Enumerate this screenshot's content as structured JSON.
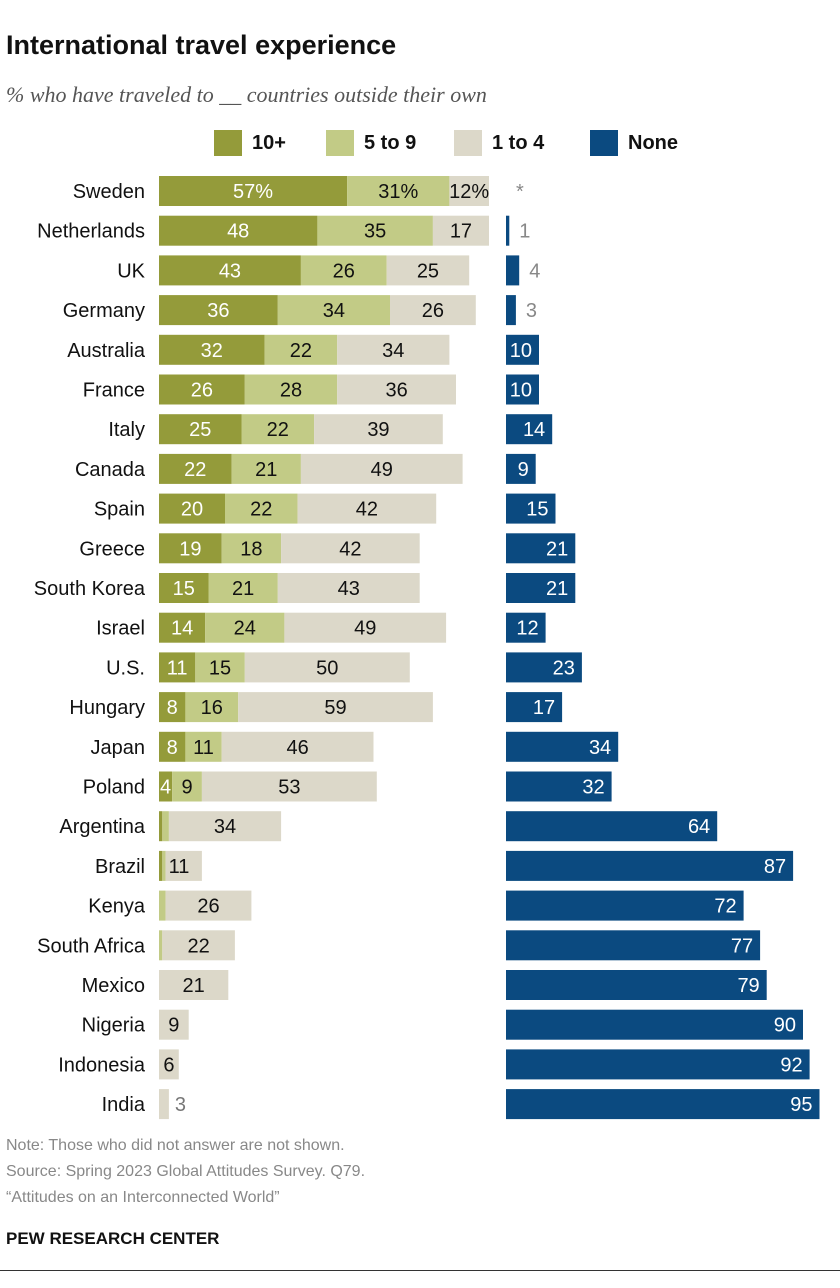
{
  "chart_data": {
    "type": "bar",
    "orientation": "horizontal-stacked",
    "title": "International travel experience",
    "subtitle": "% who have traveled to __ countries outside their own",
    "legend_position": "top",
    "colors": {
      "10+": "#949b3a",
      "5 to 9": "#c2cb86",
      "1 to 4": "#dcd8c9",
      "None": "#0b4a80"
    },
    "categories": [
      "Sweden",
      "Netherlands",
      "UK",
      "Germany",
      "Australia",
      "France",
      "Italy",
      "Canada",
      "Spain",
      "Greece",
      "South Korea",
      "Israel",
      "U.S.",
      "Hungary",
      "Japan",
      "Poland",
      "Argentina",
      "Brazil",
      "Kenya",
      "South Africa",
      "Mexico",
      "Nigeria",
      "Indonesia",
      "India"
    ],
    "series": [
      {
        "name": "10+",
        "values": [
          57,
          48,
          43,
          36,
          32,
          26,
          25,
          22,
          20,
          19,
          15,
          14,
          11,
          8,
          8,
          4,
          1,
          1,
          0,
          0,
          0,
          0,
          0,
          0
        ],
        "labels": [
          "57%",
          "48",
          "43",
          "36",
          "32",
          "26",
          "25",
          "22",
          "20",
          "19",
          "15",
          "14",
          "11",
          "8",
          "8",
          "4",
          "",
          "",
          "",
          "",
          "",
          "",
          "",
          ""
        ]
      },
      {
        "name": "5 to 9",
        "values": [
          31,
          35,
          26,
          34,
          22,
          28,
          22,
          21,
          22,
          18,
          21,
          24,
          15,
          16,
          11,
          9,
          2,
          1,
          2,
          1,
          0,
          0,
          0,
          0
        ],
        "labels": [
          "31%",
          "35",
          "26",
          "34",
          "22",
          "28",
          "22",
          "21",
          "22",
          "18",
          "21",
          "24",
          "15",
          "16",
          "11",
          "9",
          "",
          "",
          "",
          "",
          "",
          "",
          "",
          ""
        ]
      },
      {
        "name": "1 to 4",
        "values": [
          12,
          17,
          25,
          26,
          34,
          36,
          39,
          49,
          42,
          42,
          43,
          49,
          50,
          59,
          46,
          53,
          34,
          11,
          26,
          22,
          21,
          9,
          6,
          3
        ],
        "labels": [
          "12%",
          "17",
          "25",
          "26",
          "34",
          "36",
          "39",
          "49",
          "42",
          "42",
          "43",
          "49",
          "50",
          "59",
          "46",
          "53",
          "34",
          "11",
          "26",
          "22",
          "21",
          "9",
          "6",
          "3"
        ]
      },
      {
        "name": "None",
        "values": [
          0,
          1,
          4,
          3,
          10,
          10,
          14,
          9,
          15,
          21,
          21,
          12,
          23,
          17,
          34,
          32,
          64,
          87,
          72,
          77,
          79,
          90,
          92,
          95
        ],
        "labels": [
          "*",
          "1",
          "4",
          "3",
          "10",
          "10",
          "14",
          "9",
          "15",
          "21",
          "21",
          "12",
          "23",
          "17",
          "34",
          "32",
          "64",
          "87",
          "72",
          "77",
          "79",
          "90",
          "92",
          "95"
        ]
      }
    ],
    "notes": [
      "Note: Those who did not answer are not shown.",
      "Source: Spring 2023 Global Attitudes Survey. Q79.",
      "“Attitudes on an Interconnected World”"
    ],
    "brand": "PEW RESEARCH CENTER"
  }
}
